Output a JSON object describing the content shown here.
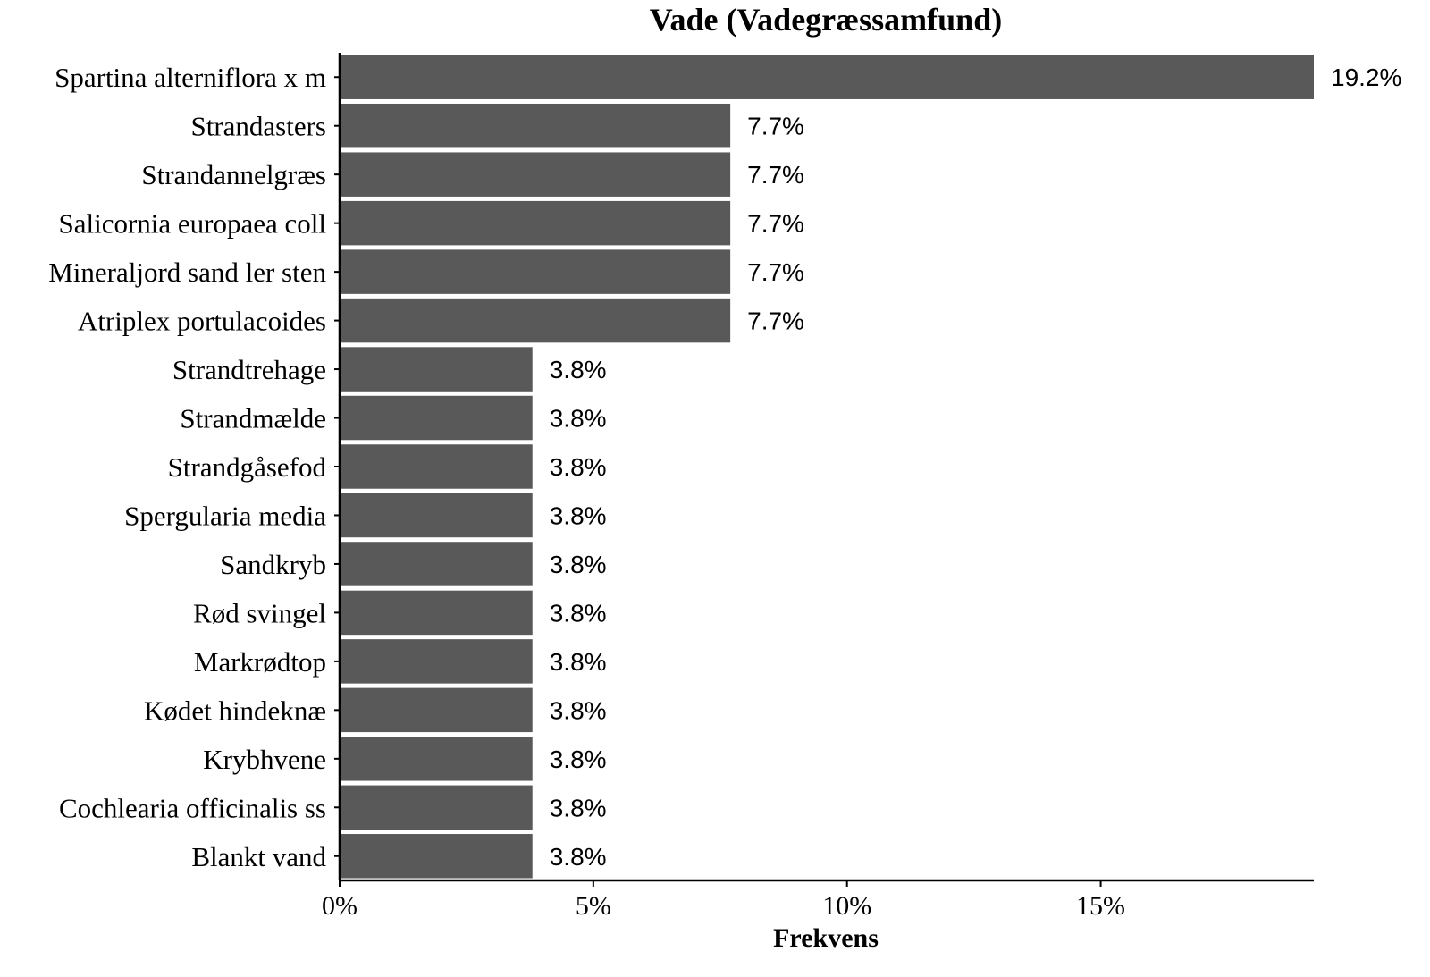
{
  "chart_data": {
    "type": "bar",
    "orientation": "horizontal",
    "title": "Vade (Vadegræssamfund)",
    "xlabel": "Frekvens",
    "ylabel": "",
    "xlim": [
      0,
      19.2
    ],
    "x_ticks": [
      {
        "value": 0,
        "label": "0%"
      },
      {
        "value": 5,
        "label": "5%"
      },
      {
        "value": 10,
        "label": "10%"
      },
      {
        "value": 15,
        "label": "15%"
      }
    ],
    "grid": false,
    "legend": "none",
    "bar_color": "#595959",
    "categories": [
      "Spartina alterniflora x m",
      "Strandasters",
      "Strandannelgræs",
      "Salicornia europaea coll",
      "Mineraljord sand ler sten",
      "Atriplex portulacoides",
      "Strandtrehage",
      "Strandmælde",
      "Strandgåsefod",
      "Spergularia media",
      "Sandkryb",
      "Rød svingel",
      "Markrødtop",
      "Kødet hindeknæ",
      "Krybhvene",
      "Cochlearia officinalis ss",
      "Blankt vand"
    ],
    "values": [
      19.2,
      7.7,
      7.7,
      7.7,
      7.7,
      7.7,
      3.8,
      3.8,
      3.8,
      3.8,
      3.8,
      3.8,
      3.8,
      3.8,
      3.8,
      3.8,
      3.8
    ],
    "value_labels": [
      "19.2%",
      "7.7%",
      "7.7%",
      "7.7%",
      "7.7%",
      "7.7%",
      "3.8%",
      "3.8%",
      "3.8%",
      "3.8%",
      "3.8%",
      "3.8%",
      "3.8%",
      "3.8%",
      "3.8%",
      "3.8%",
      "3.8%"
    ]
  }
}
